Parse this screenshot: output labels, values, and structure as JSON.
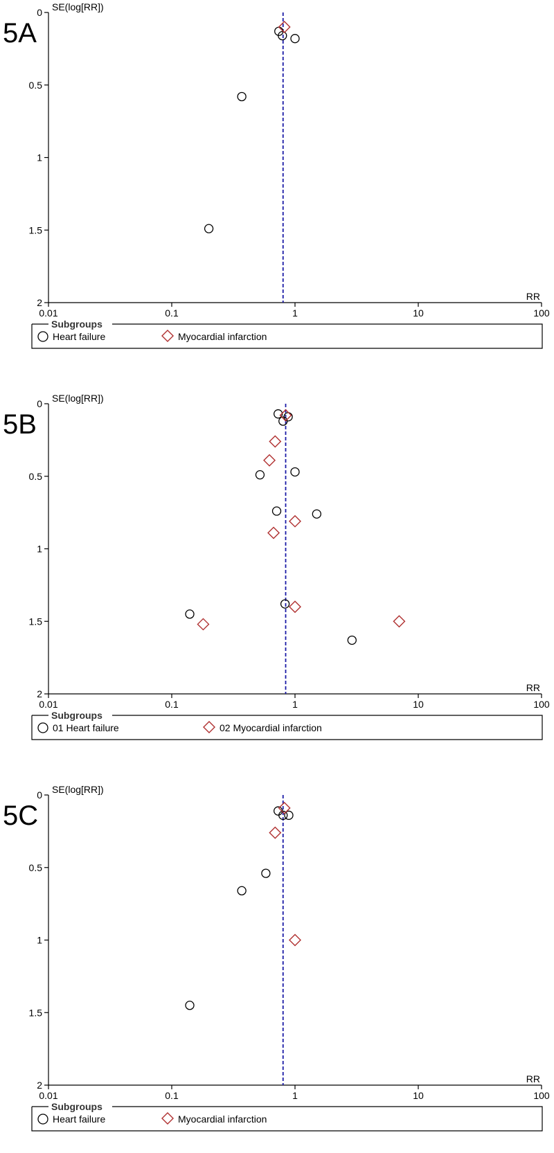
{
  "colors": {
    "axis": "#000000",
    "circle": "#000000",
    "diamond": "#b03030",
    "reference_line": "#1a1aa6"
  },
  "chart_data": [
    {
      "type": "scatter",
      "panel_label": "5A",
      "title": "",
      "ylabel": "SE(log[RR])",
      "xlabel": "RR",
      "x_scale": "log",
      "xlim": [
        0.01,
        100
      ],
      "ylim": [
        0,
        2
      ],
      "y_reversed": true,
      "x_ticks": [
        "0.01",
        "0.1",
        "1",
        "10",
        "100"
      ],
      "y_ticks": [
        "0",
        "0.5",
        "1",
        "1.5",
        "2"
      ],
      "reference_line_rr": 0.8,
      "legend": {
        "title": "Subgroups",
        "items": [
          "Heart failure",
          "Myocardial infarction"
        ]
      },
      "series": [
        {
          "name": "Heart failure",
          "marker": "circle",
          "points": [
            [
              0.74,
              0.13
            ],
            [
              0.79,
              0.16
            ],
            [
              1.0,
              0.18
            ],
            [
              0.37,
              0.58
            ],
            [
              0.2,
              1.49
            ]
          ]
        },
        {
          "name": "Myocardial infarction",
          "marker": "diamond",
          "points": [
            [
              0.82,
              0.1
            ]
          ]
        }
      ]
    },
    {
      "type": "scatter",
      "panel_label": "5B",
      "title": "",
      "ylabel": "SE(log[RR])",
      "xlabel": "RR",
      "x_scale": "log",
      "xlim": [
        0.01,
        100
      ],
      "ylim": [
        0,
        2
      ],
      "y_reversed": true,
      "x_ticks": [
        "0.01",
        "0.1",
        "1",
        "10",
        "100"
      ],
      "y_ticks": [
        "0",
        "0.5",
        "1",
        "1.5",
        "2"
      ],
      "reference_line_rr": 0.84,
      "legend": {
        "title": "Subgroups",
        "items": [
          "01 Heart failure",
          "02 Myocardial infarction"
        ]
      },
      "series": [
        {
          "name": "01 Heart failure",
          "marker": "circle",
          "points": [
            [
              0.73,
              0.07
            ],
            [
              0.88,
              0.09
            ],
            [
              0.8,
              0.12
            ],
            [
              1.0,
              0.47
            ],
            [
              0.52,
              0.49
            ],
            [
              0.71,
              0.74
            ],
            [
              1.5,
              0.76
            ],
            [
              0.83,
              1.38
            ],
            [
              0.14,
              1.45
            ],
            [
              2.9,
              1.63
            ]
          ]
        },
        {
          "name": "02 Myocardial infarction",
          "marker": "diamond",
          "points": [
            [
              0.84,
              0.08
            ],
            [
              0.69,
              0.26
            ],
            [
              0.62,
              0.39
            ],
            [
              1.0,
              0.81
            ],
            [
              0.67,
              0.89
            ],
            [
              1.0,
              1.4
            ],
            [
              0.18,
              1.52
            ],
            [
              7.0,
              1.5
            ]
          ]
        }
      ]
    },
    {
      "type": "scatter",
      "panel_label": "5C",
      "title": "",
      "ylabel": "SE(log[RR])",
      "xlabel": "RR",
      "x_scale": "log",
      "xlim": [
        0.01,
        100
      ],
      "ylim": [
        0,
        2
      ],
      "y_reversed": true,
      "x_ticks": [
        "0.01",
        "0.1",
        "1",
        "10",
        "100"
      ],
      "y_ticks": [
        "0",
        "0.5",
        "1",
        "1.5",
        "2"
      ],
      "reference_line_rr": 0.8,
      "legend": {
        "title": "Subgroups",
        "items": [
          "Heart failure",
          "Myocardial infarction"
        ]
      },
      "series": [
        {
          "name": "Heart failure",
          "marker": "circle",
          "points": [
            [
              0.73,
              0.11
            ],
            [
              0.8,
              0.14
            ],
            [
              0.89,
              0.14
            ],
            [
              0.58,
              0.54
            ],
            [
              0.37,
              0.66
            ],
            [
              0.14,
              1.45
            ]
          ]
        },
        {
          "name": "Myocardial infarction",
          "marker": "diamond",
          "points": [
            [
              0.82,
              0.09
            ],
            [
              0.69,
              0.26
            ],
            [
              1.0,
              1.0
            ]
          ]
        }
      ]
    }
  ]
}
